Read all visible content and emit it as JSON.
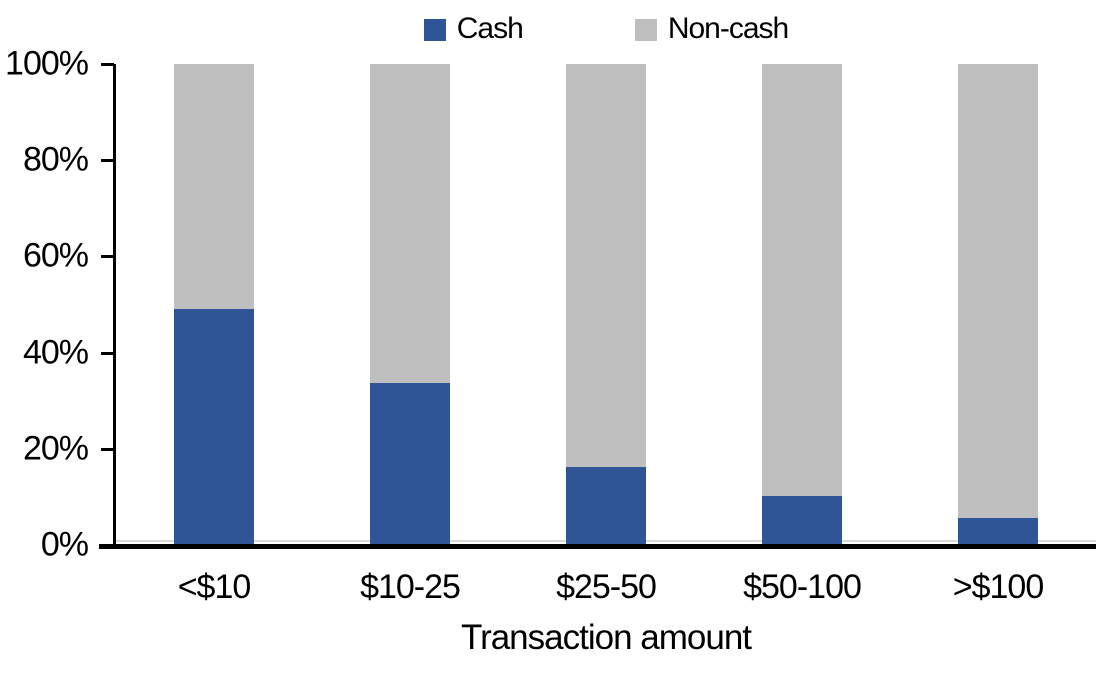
{
  "chart_data": {
    "type": "bar",
    "subtype": "stacked-100",
    "categories": [
      "<$10",
      "$10-25",
      "$25-50",
      "$50-100",
      ">$100"
    ],
    "series": [
      {
        "name": "Cash",
        "color": "#2F5597",
        "values": [
          49,
          33.5,
          16,
          10,
          5.5
        ]
      },
      {
        "name": "Non-cash",
        "color": "#BFBFBF",
        "values": [
          51,
          66.5,
          84,
          90,
          94.5
        ]
      }
    ],
    "title": "",
    "xlabel": "Transaction amount",
    "ylabel": "",
    "ylim": [
      0,
      100
    ],
    "yticks": [
      {
        "value": 0,
        "label": "0%"
      },
      {
        "value": 20,
        "label": "20%"
      },
      {
        "value": 40,
        "label": "40%"
      },
      {
        "value": 60,
        "label": "60%"
      },
      {
        "value": 80,
        "label": "80%"
      },
      {
        "value": 100,
        "label": "100%"
      }
    ],
    "legend_position": "top",
    "grid": false,
    "axis_color": "#000000",
    "zero_gridline_color": "#D9D9D9",
    "background_color": "#FFFFFF"
  }
}
